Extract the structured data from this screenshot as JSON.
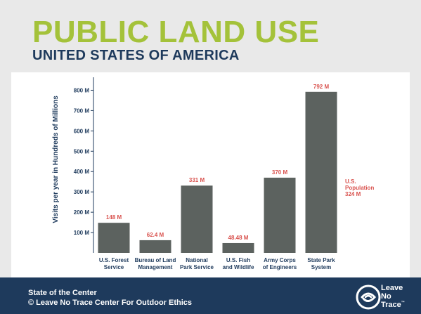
{
  "header": {
    "title": "PUBLIC LAND USE",
    "subtitle": "UNITED STATES OF AMERICA"
  },
  "colors": {
    "title": "#a4c23a",
    "subtitle": "#1e3a5c",
    "bar": "#5c625f",
    "value_label": "#d9534f",
    "footer_bg": "#1e3a5c"
  },
  "chart_data": {
    "type": "bar",
    "title": "",
    "xlabel": "",
    "ylabel": "Visits per year in Hundreds of Millions",
    "ylim": [
      0,
      850
    ],
    "yticks": [
      100,
      200,
      300,
      400,
      500,
      600,
      700,
      800
    ],
    "ytick_labels": [
      "100 M",
      "200 M",
      "300 M",
      "400 M",
      "500 M",
      "600 M",
      "700 M",
      "800 M"
    ],
    "grid": false,
    "categories": [
      [
        "U.S. Forest",
        "Service"
      ],
      [
        "Bureau of Land",
        "Management"
      ],
      [
        "National",
        "Park Service"
      ],
      [
        "U.S. Fish",
        "and Wildlife"
      ],
      [
        "Army Corps",
        "of Engineers"
      ],
      [
        "State Park",
        "System"
      ]
    ],
    "values": [
      148,
      62.4,
      331,
      48.48,
      370,
      792
    ],
    "value_labels": [
      "148 M",
      "62.4 M",
      "331 M",
      "48.48 M",
      "370 M",
      "792 M"
    ],
    "annotation": [
      "U.S.",
      "Population",
      "324 M"
    ]
  },
  "footer": {
    "line1": "State of the Center",
    "line2": "© Leave No Trace Center For Outdoor Ethics"
  },
  "logo": {
    "line1": "Leave",
    "line2": "No",
    "line3": "Trace",
    "tm": "™",
    "icon": "leave-no-trace-swirl-icon"
  }
}
